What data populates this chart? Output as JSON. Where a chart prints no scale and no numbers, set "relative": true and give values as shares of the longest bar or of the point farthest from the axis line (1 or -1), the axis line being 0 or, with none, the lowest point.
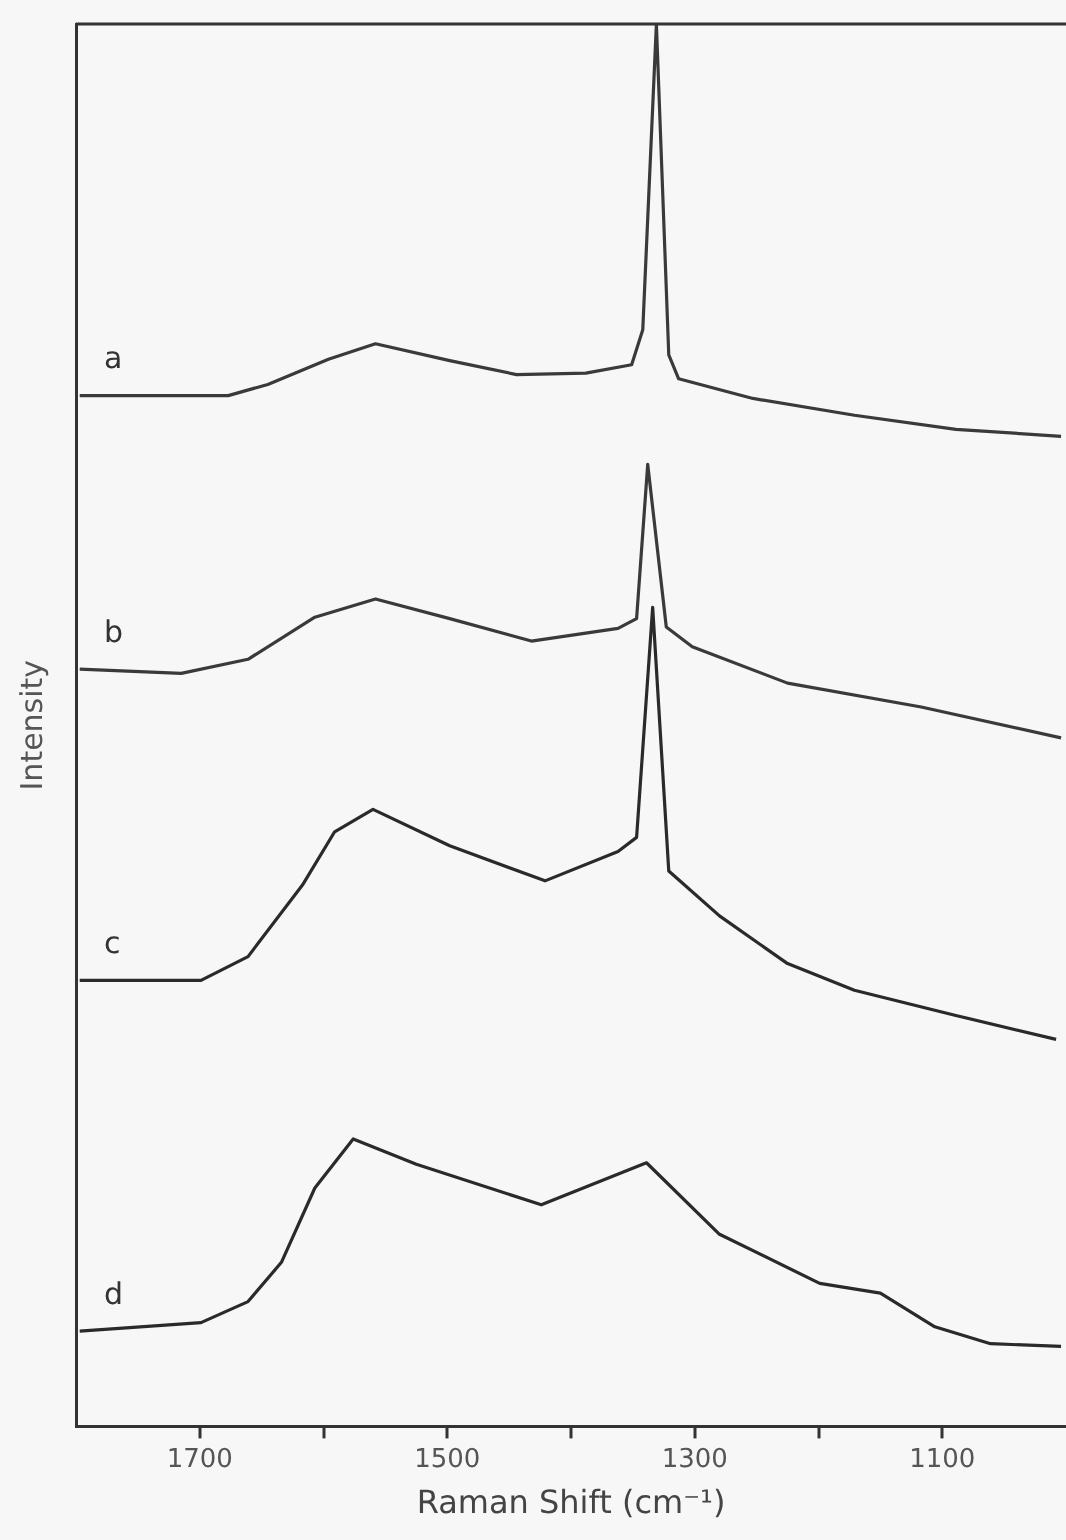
{
  "chart_data": {
    "type": "line",
    "xlabel": "Raman Shift (cm⁻¹)",
    "ylabel": "Intensity",
    "relative": true,
    "xlim": [
      1800,
      1000
    ],
    "xticks": [
      1700,
      {
        "value": 1600,
        "label": null
      },
      1500,
      {
        "value": 1400,
        "label": null
      },
      1300,
      {
        "value": 1200,
        "label": null
      },
      1100
    ],
    "grid": false,
    "legend": false,
    "marker": "none",
    "line_style": "solid",
    "series": [
      {
        "name": "a",
        "color": "#3a3a3a",
        "x": [
          1797,
          1677,
          1645,
          1596,
          1558,
          1498,
          1444,
          1388,
          1351,
          1342,
          1331,
          1321,
          1313,
          1253,
          1171,
          1089,
          1004
        ],
        "values": [
          0.735,
          0.735,
          0.743,
          0.761,
          0.772,
          0.76,
          0.75,
          0.751,
          0.757,
          0.782,
          1.0,
          0.764,
          0.747,
          0.733,
          0.721,
          0.711,
          0.706
        ]
      },
      {
        "name": "b",
        "color": "#3a3a3a",
        "x": [
          1797,
          1715,
          1661,
          1607,
          1558,
          1498,
          1432,
          1362,
          1347,
          1338,
          1323,
          1302,
          1225,
          1117,
          1004
        ],
        "values": [
          0.54,
          0.537,
          0.547,
          0.577,
          0.59,
          0.576,
          0.56,
          0.569,
          0.576,
          0.686,
          0.57,
          0.556,
          0.53,
          0.513,
          0.491
        ]
      },
      {
        "name": "c",
        "color": "#2a2a2a",
        "x": [
          1797,
          1699,
          1661,
          1617,
          1591,
          1560,
          1498,
          1421,
          1362,
          1347,
          1334,
          1321,
          1280,
          1225,
          1171,
          1089,
          1008
        ],
        "values": [
          0.318,
          0.318,
          0.335,
          0.386,
          0.424,
          0.44,
          0.414,
          0.389,
          0.41,
          0.42,
          0.584,
          0.396,
          0.364,
          0.33,
          0.311,
          0.293,
          0.276
        ]
      },
      {
        "name": "d",
        "color": "#2a2a2a",
        "x": [
          1797,
          1699,
          1661,
          1634,
          1607,
          1576,
          1525,
          1424,
          1339,
          1280,
          1199,
          1150,
          1106,
          1061,
          1004
        ],
        "values": [
          0.068,
          0.074,
          0.089,
          0.117,
          0.17,
          0.205,
          0.187,
          0.158,
          0.188,
          0.137,
          0.102,
          0.095,
          0.071,
          0.059,
          0.057
        ]
      }
    ]
  }
}
